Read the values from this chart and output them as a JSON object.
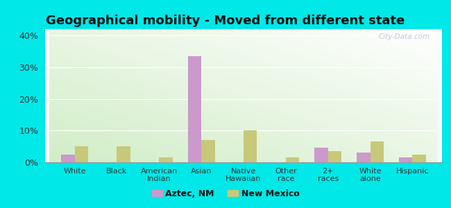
{
  "title": "Geographical mobility - Moved from different state",
  "categories": [
    "White",
    "Black",
    "American\nIndian",
    "Asian",
    "Native\nHawaiian",
    "Other\nrace",
    "2+\nraces",
    "White\nalone",
    "Hispanic"
  ],
  "aztec_values": [
    2.5,
    0.0,
    0.0,
    33.5,
    0.0,
    0.0,
    4.5,
    3.0,
    1.5
  ],
  "nm_values": [
    5.0,
    5.0,
    1.5,
    7.0,
    10.0,
    1.5,
    3.5,
    6.5,
    2.5
  ],
  "aztec_color": "#cc99cc",
  "nm_color": "#c8c87a",
  "ylim": [
    0,
    42
  ],
  "yticks": [
    0,
    10,
    20,
    30,
    40
  ],
  "ytick_labels": [
    "0%",
    "10%",
    "20%",
    "30%",
    "40%"
  ],
  "outer_background": "#00e8e8",
  "title_fontsize": 13,
  "watermark": "City-Data.com"
}
